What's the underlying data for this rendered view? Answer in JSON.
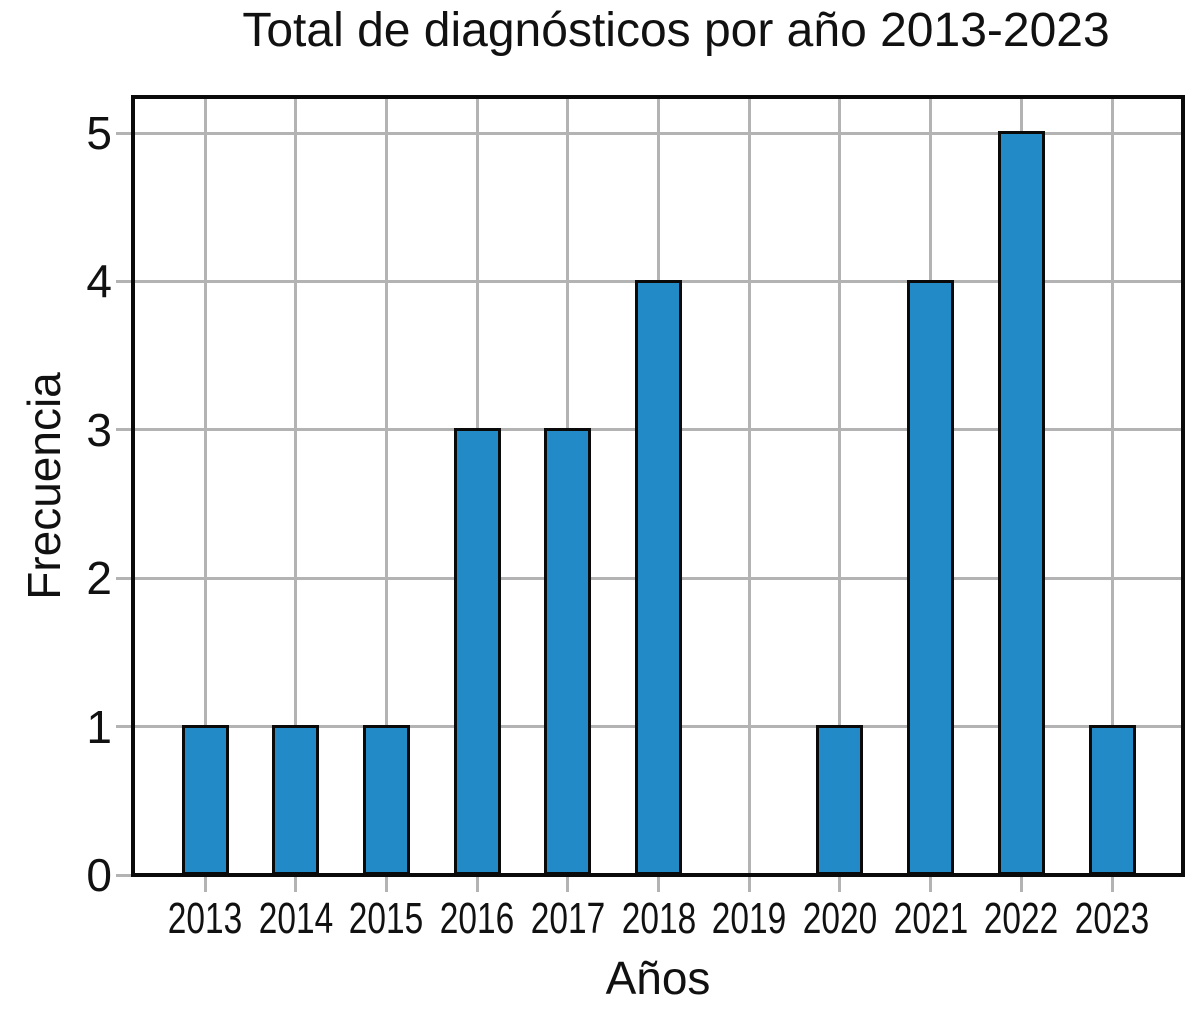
{
  "chart_data": {
    "type": "bar",
    "title": "Total de diagnósticos por año 2013-2023",
    "xlabel": "Años",
    "ylabel": "Frecuencia",
    "categories": [
      "2013",
      "2014",
      "2015",
      "2016",
      "2017",
      "2018",
      "2019",
      "2020",
      "2021",
      "2022",
      "2023"
    ],
    "values": [
      1,
      1,
      1,
      3,
      3,
      4,
      0,
      1,
      4,
      5,
      1
    ],
    "ytick_labels": [
      "0",
      "1",
      "2",
      "3",
      "4",
      "5"
    ],
    "yticks": [
      0,
      1,
      2,
      3,
      4,
      5
    ],
    "ylim": [
      0,
      5.25
    ],
    "grid": true,
    "legend_position": "none",
    "colors": {
      "bar_fill": "#218ac7",
      "bar_edge": "#0a0a0a",
      "grid": "#b3b3b3",
      "spine": "#0a0a0a",
      "text": "#111111",
      "background": "#ffffff"
    }
  }
}
